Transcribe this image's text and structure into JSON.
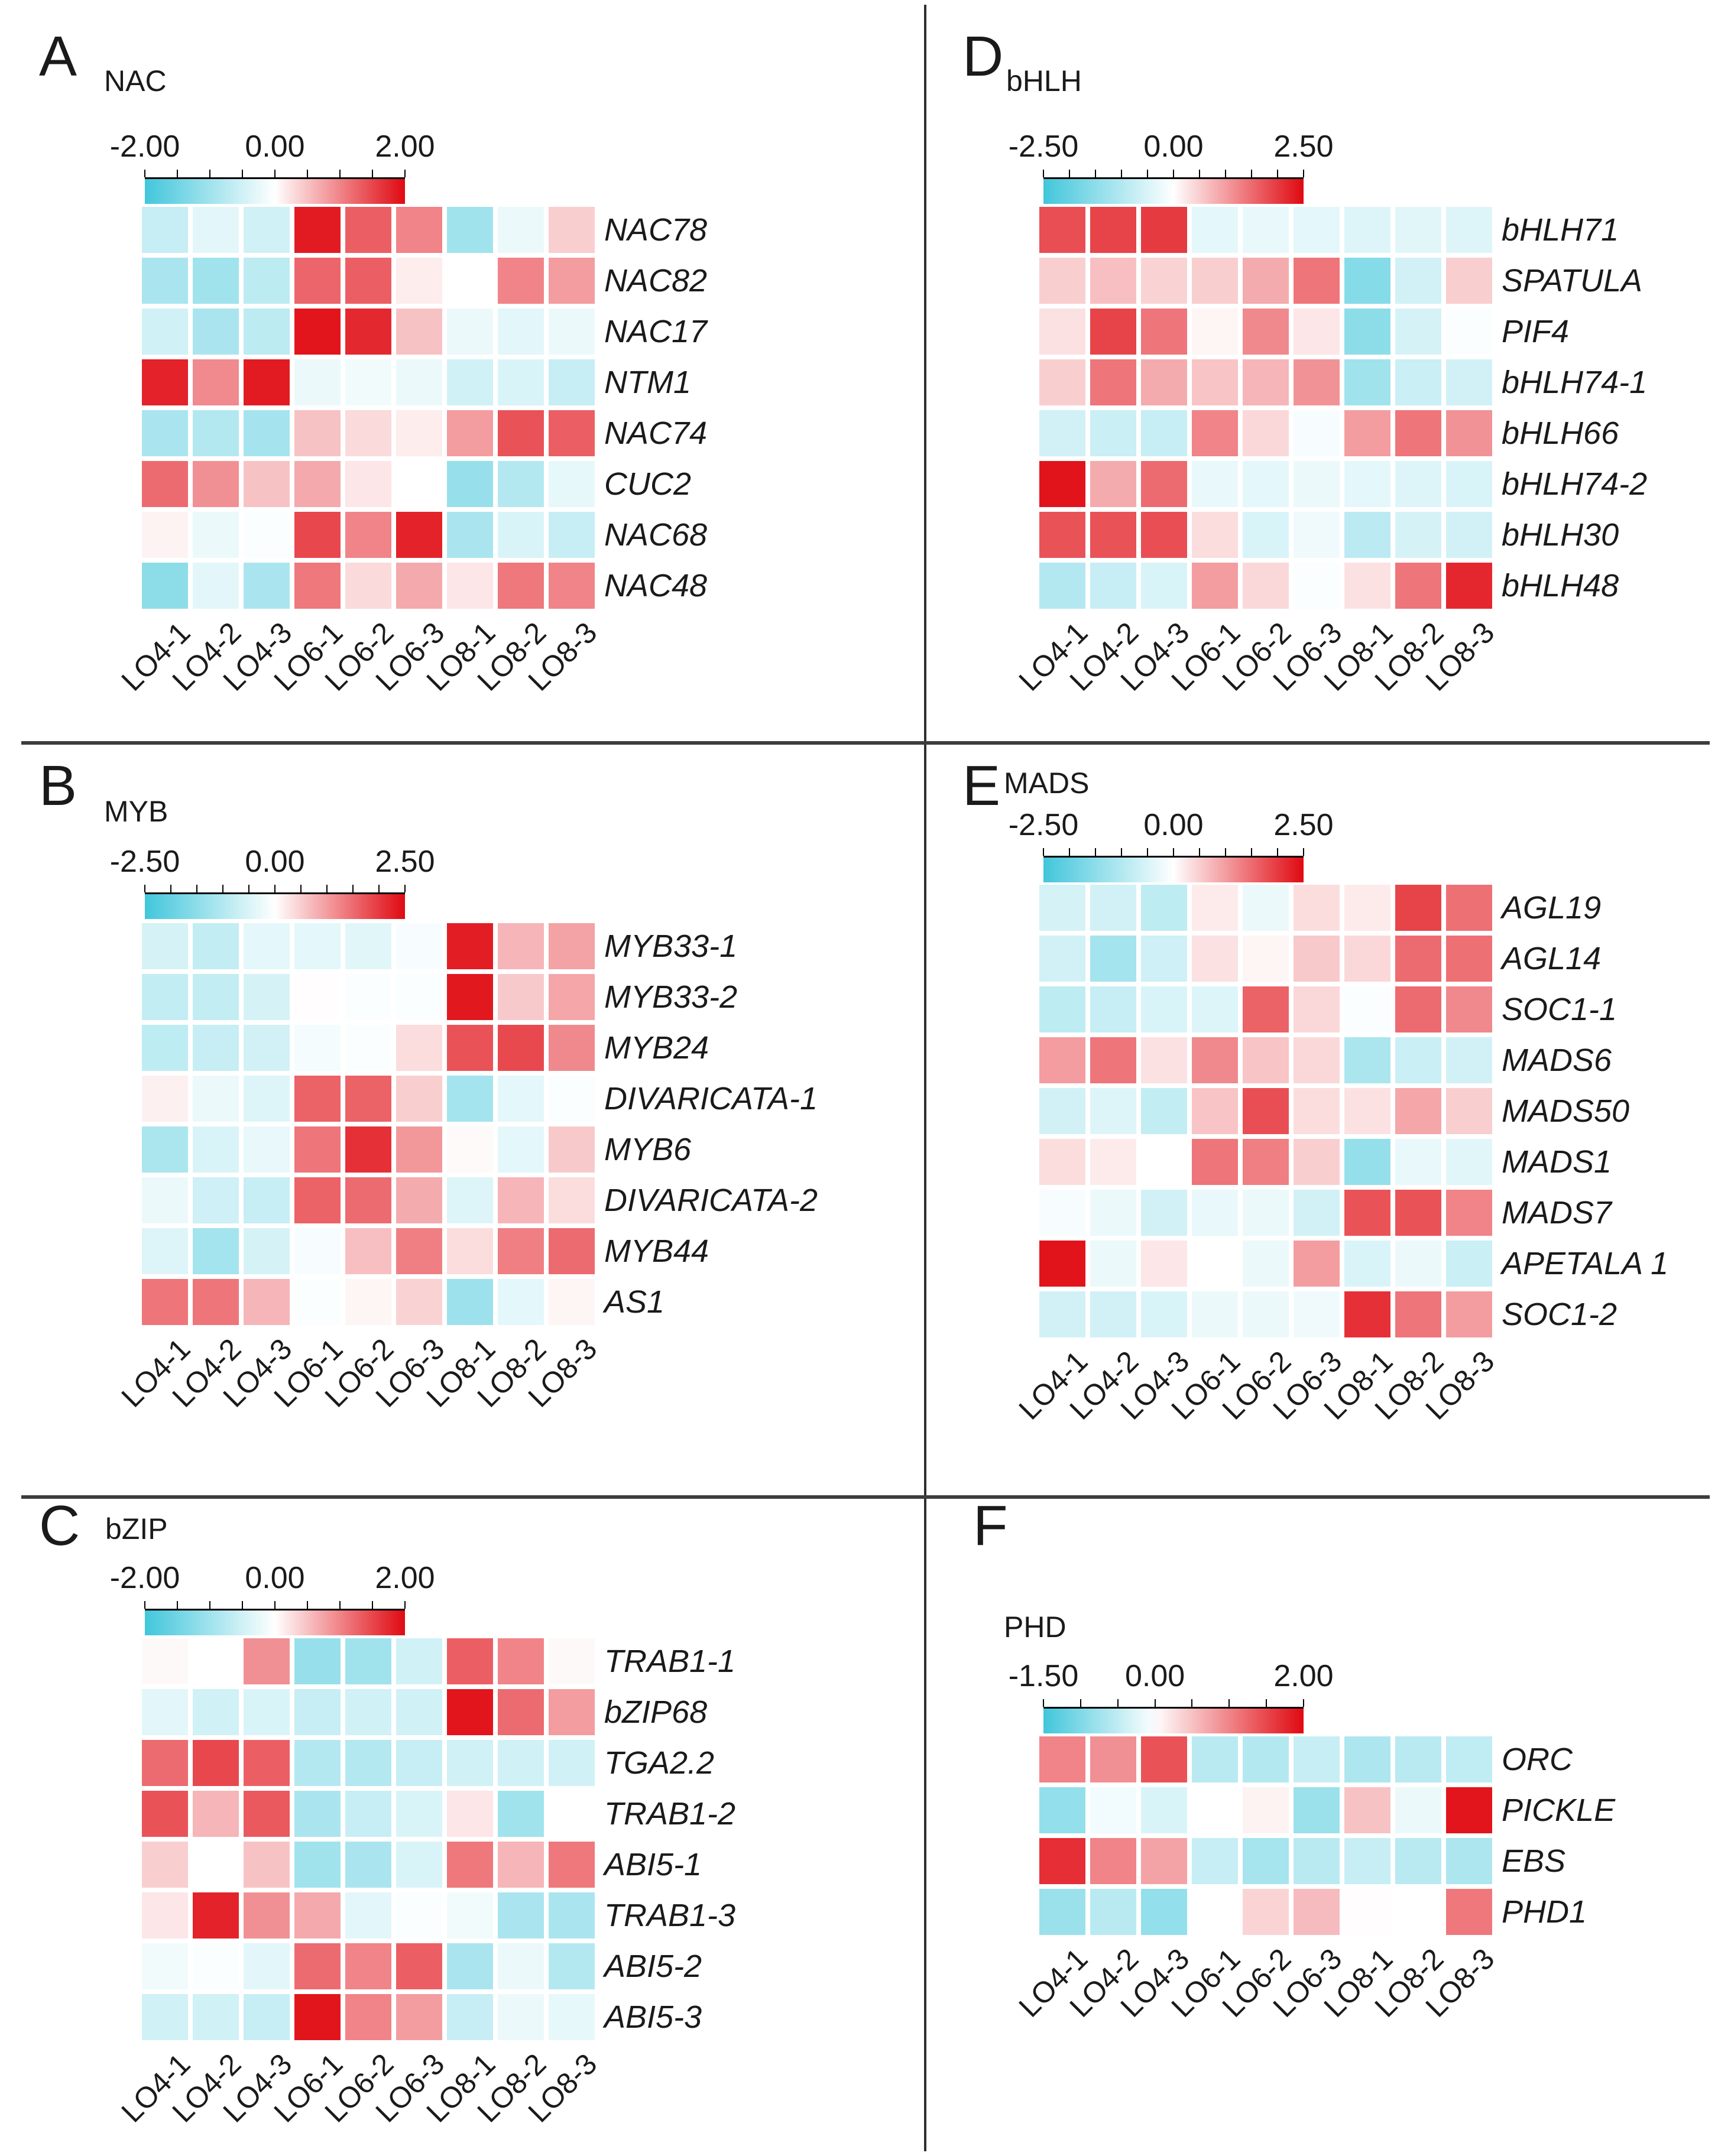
{
  "figure": {
    "description": "Six-panel gene expression heatmap figure of transcription factor families",
    "colors": {
      "negative_end": "#41C6DB",
      "positive_end": "#E00911",
      "background": "#ffffff",
      "divider": "#3d3d3d",
      "text": "#1a1a1a"
    }
  },
  "columns": [
    "LO4-1",
    "LO4-2",
    "LO4-3",
    "LO6-1",
    "LO6-2",
    "LO6-3",
    "LO8-1",
    "LO8-2",
    "LO8-3"
  ],
  "chart_data": [
    {
      "type": "heatmap",
      "panel": "A",
      "title": "NAC",
      "colorbar": {
        "min": -2.0,
        "max": 2.0,
        "min_label": "-2.00",
        "zero_label": "0.00",
        "max_label": "2.00",
        "tick_step": 0.5
      },
      "categories": [
        "LO4-1",
        "LO4-2",
        "LO4-3",
        "LO6-1",
        "LO6-2",
        "LO6-3",
        "LO8-1",
        "LO8-2",
        "LO8-3"
      ],
      "rows": [
        {
          "gene": "NAC78",
          "values": [
            -0.6,
            -0.3,
            -0.5,
            1.85,
            1.3,
            1.0,
            -1.0,
            -0.2,
            0.4
          ]
        },
        {
          "gene": "NAC82",
          "values": [
            -0.9,
            -1.0,
            -0.7,
            1.25,
            1.3,
            0.15,
            0.0,
            1.0,
            0.8
          ]
        },
        {
          "gene": "NAC17",
          "values": [
            -0.5,
            -0.9,
            -0.7,
            1.9,
            1.75,
            0.5,
            -0.2,
            -0.3,
            -0.2
          ]
        },
        {
          "gene": "NTM1",
          "values": [
            1.8,
            0.95,
            1.85,
            -0.2,
            -0.15,
            -0.2,
            -0.5,
            -0.4,
            -0.6
          ]
        },
        {
          "gene": "NAC74",
          "values": [
            -0.9,
            -0.8,
            -0.95,
            0.5,
            0.3,
            0.15,
            0.8,
            1.4,
            1.3
          ]
        },
        {
          "gene": "CUC2",
          "values": [
            1.2,
            0.9,
            0.5,
            0.7,
            0.2,
            0.0,
            -1.1,
            -0.8,
            -0.25
          ]
        },
        {
          "gene": "NAC68",
          "values": [
            0.1,
            -0.2,
            -0.05,
            1.5,
            1.0,
            1.8,
            -0.9,
            -0.4,
            -0.6
          ]
        },
        {
          "gene": "NAC48",
          "values": [
            -1.2,
            -0.3,
            -0.9,
            1.1,
            0.3,
            0.7,
            0.2,
            1.1,
            1.0
          ]
        }
      ]
    },
    {
      "type": "heatmap",
      "panel": "B",
      "title": "MYB",
      "colorbar": {
        "min": -2.5,
        "max": 2.5,
        "min_label": "-2.50",
        "zero_label": "0.00",
        "max_label": "2.50",
        "tick_step": 0.5
      },
      "categories": [
        "LO4-1",
        "LO4-2",
        "LO4-3",
        "LO6-1",
        "LO6-2",
        "LO6-3",
        "LO8-1",
        "LO8-2",
        "LO8-3"
      ],
      "rows": [
        {
          "gene": "MYB33-1",
          "values": [
            -0.55,
            -0.8,
            -0.35,
            -0.35,
            -0.4,
            -0.1,
            2.3,
            0.75,
            0.95
          ]
        },
        {
          "gene": "MYB33-2",
          "values": [
            -0.8,
            -0.8,
            -0.55,
            0.02,
            -0.05,
            -0.05,
            2.35,
            0.55,
            0.9
          ]
        },
        {
          "gene": "MYB24",
          "values": [
            -0.85,
            -0.75,
            -0.6,
            -0.15,
            -0.05,
            0.35,
            1.75,
            1.85,
            1.2
          ]
        },
        {
          "gene": "DIVARICATA-1",
          "values": [
            0.15,
            -0.25,
            -0.45,
            1.6,
            1.6,
            0.5,
            -1.2,
            -0.35,
            -0.05
          ]
        },
        {
          "gene": "MYB6",
          "values": [
            -1.1,
            -0.5,
            -0.3,
            1.4,
            2.1,
            1.05,
            0.05,
            -0.35,
            0.55
          ]
        },
        {
          "gene": "DIVARICATA-2",
          "values": [
            -0.25,
            -0.65,
            -0.75,
            1.6,
            1.5,
            0.85,
            -0.45,
            0.75,
            0.35
          ]
        },
        {
          "gene": "MYB44",
          "values": [
            -0.45,
            -1.2,
            -0.55,
            -0.1,
            0.65,
            1.3,
            0.35,
            1.3,
            1.5
          ]
        },
        {
          "gene": "AS1",
          "values": [
            1.4,
            1.4,
            0.75,
            -0.05,
            0.1,
            0.45,
            -1.3,
            -0.35,
            0.1
          ]
        }
      ]
    },
    {
      "type": "heatmap",
      "panel": "C",
      "title": "bZIP",
      "colorbar": {
        "min": -2.0,
        "max": 2.0,
        "min_label": "-2.00",
        "zero_label": "0.00",
        "max_label": "2.00",
        "tick_step": 0.5
      },
      "categories": [
        "LO4-1",
        "LO4-2",
        "LO4-3",
        "LO6-1",
        "LO6-2",
        "LO6-3",
        "LO8-1",
        "LO8-2",
        "LO8-3"
      ],
      "rows": [
        {
          "gene": "TRAB1-1",
          "values": [
            0.05,
            0.0,
            0.9,
            -1.1,
            -1.0,
            -0.5,
            1.3,
            1.0,
            0.05
          ]
        },
        {
          "gene": "bZIP68",
          "values": [
            -0.3,
            -0.5,
            -0.4,
            -0.6,
            -0.5,
            -0.5,
            1.9,
            1.2,
            0.8
          ]
        },
        {
          "gene": "TGA2.2",
          "values": [
            1.2,
            1.5,
            1.3,
            -0.8,
            -0.8,
            -0.6,
            -0.5,
            -0.5,
            -0.5
          ]
        },
        {
          "gene": "TRAB1-2",
          "values": [
            1.4,
            0.6,
            1.35,
            -0.9,
            -0.6,
            -0.4,
            0.2,
            -1.0,
            0.0
          ]
        },
        {
          "gene": "ABI5-1",
          "values": [
            0.4,
            0.0,
            0.5,
            -1.0,
            -0.9,
            -0.4,
            1.1,
            0.6,
            1.1
          ]
        },
        {
          "gene": "TRAB1-3",
          "values": [
            0.2,
            1.8,
            0.9,
            0.7,
            -0.3,
            -0.05,
            -0.15,
            -0.9,
            -0.9
          ]
        },
        {
          "gene": "ABI5-2",
          "values": [
            -0.15,
            -0.05,
            -0.3,
            1.2,
            1.0,
            1.3,
            -0.9,
            -0.2,
            -0.8
          ]
        },
        {
          "gene": "ABI5-3",
          "values": [
            -0.5,
            -0.5,
            -0.6,
            1.9,
            1.0,
            0.8,
            -0.6,
            -0.2,
            -0.25
          ]
        }
      ]
    },
    {
      "type": "heatmap",
      "panel": "D",
      "title": "bHLH",
      "colorbar": {
        "min": -2.5,
        "max": 2.5,
        "min_label": "-2.50",
        "zero_label": "0.00",
        "max_label": "2.50",
        "tick_step": 0.5
      },
      "categories": [
        "LO4-1",
        "LO4-2",
        "LO4-3",
        "LO6-1",
        "LO6-2",
        "LO6-3",
        "LO8-1",
        "LO8-2",
        "LO8-3"
      ],
      "rows": [
        {
          "gene": "bHLH71",
          "values": [
            1.8,
            1.9,
            2.0,
            -0.35,
            -0.3,
            -0.35,
            -0.45,
            -0.4,
            -0.45
          ]
        },
        {
          "gene": "SPATULA",
          "values": [
            0.5,
            0.65,
            0.45,
            0.5,
            0.85,
            1.4,
            -1.6,
            -0.6,
            0.5
          ]
        },
        {
          "gene": "PIF4",
          "values": [
            0.3,
            1.9,
            1.4,
            0.1,
            1.2,
            0.25,
            -1.5,
            -0.55,
            -0.05
          ]
        },
        {
          "gene": "bHLH74-1",
          "values": [
            0.5,
            1.4,
            0.85,
            0.6,
            0.75,
            1.1,
            -1.25,
            -0.7,
            -0.6
          ]
        },
        {
          "gene": "bHLH66",
          "values": [
            -0.6,
            -0.7,
            -0.75,
            1.25,
            0.4,
            -0.1,
            1.0,
            1.4,
            1.1
          ]
        },
        {
          "gene": "bHLH74-2",
          "values": [
            2.4,
            0.85,
            1.5,
            -0.3,
            -0.35,
            -0.25,
            -0.35,
            -0.45,
            -0.5
          ]
        },
        {
          "gene": "bHLH30",
          "values": [
            1.75,
            1.75,
            1.8,
            0.35,
            -0.5,
            -0.2,
            -0.9,
            -0.55,
            -0.6
          ]
        },
        {
          "gene": "bHLH48",
          "values": [
            -1.0,
            -0.75,
            -0.5,
            1.0,
            0.4,
            -0.05,
            0.3,
            1.4,
            2.2
          ]
        }
      ]
    },
    {
      "type": "heatmap",
      "panel": "E",
      "title": "MADS",
      "colorbar": {
        "min": -2.5,
        "max": 2.5,
        "min_label": "-2.50",
        "zero_label": "0.00",
        "max_label": "2.50",
        "tick_step": 0.5
      },
      "categories": [
        "LO4-1",
        "LO4-2",
        "LO4-3",
        "LO6-1",
        "LO6-2",
        "LO6-3",
        "LO8-1",
        "LO8-2",
        "LO8-3"
      ],
      "rows": [
        {
          "gene": "AGL19",
          "values": [
            -0.55,
            -0.6,
            -0.85,
            0.2,
            -0.25,
            0.35,
            0.2,
            1.9,
            1.45
          ]
        },
        {
          "gene": "AGL14",
          "values": [
            -0.6,
            -1.2,
            -0.65,
            0.3,
            0.1,
            0.55,
            0.4,
            1.5,
            1.45
          ]
        },
        {
          "gene": "SOC1-1",
          "values": [
            -0.85,
            -0.75,
            -0.5,
            -0.45,
            1.6,
            0.4,
            -0.05,
            1.5,
            1.2
          ]
        },
        {
          "gene": "MADS6",
          "values": [
            1.0,
            1.4,
            0.3,
            1.2,
            0.6,
            0.4,
            -1.1,
            -0.7,
            -0.6
          ]
        },
        {
          "gene": "MADS50",
          "values": [
            -0.6,
            -0.45,
            -0.8,
            0.6,
            1.8,
            0.35,
            0.3,
            0.9,
            0.5
          ]
        },
        {
          "gene": "MADS1",
          "values": [
            0.35,
            0.2,
            0.0,
            1.4,
            1.3,
            0.5,
            -1.4,
            -0.3,
            -0.4
          ]
        },
        {
          "gene": "MADS7",
          "values": [
            -0.1,
            -0.25,
            -0.6,
            -0.3,
            -0.25,
            -0.6,
            1.75,
            1.75,
            1.25
          ]
        },
        {
          "gene": "APETALA 1",
          "values": [
            2.4,
            -0.25,
            0.25,
            0.0,
            -0.25,
            1.0,
            -0.5,
            -0.25,
            -0.7
          ]
        },
        {
          "gene": "SOC1-2",
          "values": [
            -0.6,
            -0.6,
            -0.5,
            -0.25,
            -0.25,
            -0.2,
            2.1,
            1.4,
            1.0
          ]
        }
      ]
    },
    {
      "type": "heatmap",
      "panel": "F",
      "title": "PHD",
      "colorbar": {
        "min": -1.5,
        "max": 2.0,
        "min_label": "-1.50",
        "zero_label": "0.00",
        "max_label": "2.00",
        "tick_step": 0.5
      },
      "categories": [
        "LO4-1",
        "LO4-2",
        "LO4-3",
        "LO6-1",
        "LO6-2",
        "LO6-3",
        "LO8-1",
        "LO8-2",
        "LO8-3"
      ],
      "rows": [
        {
          "gene": "ORC",
          "values": [
            1.0,
            0.9,
            1.4,
            -0.55,
            -0.6,
            -0.45,
            -0.65,
            -0.55,
            -0.5
          ]
        },
        {
          "gene": "PICKLE",
          "values": [
            -0.85,
            -0.1,
            -0.3,
            0.0,
            0.1,
            -0.8,
            0.5,
            -0.15,
            1.9
          ]
        },
        {
          "gene": "EBS",
          "values": [
            1.7,
            1.0,
            0.75,
            -0.45,
            -0.7,
            -0.55,
            -0.45,
            -0.55,
            -0.65
          ]
        },
        {
          "gene": "PHD1",
          "values": [
            -0.8,
            -0.55,
            -0.85,
            0.0,
            0.35,
            0.55,
            0.02,
            0.0,
            1.1
          ]
        }
      ]
    }
  ]
}
